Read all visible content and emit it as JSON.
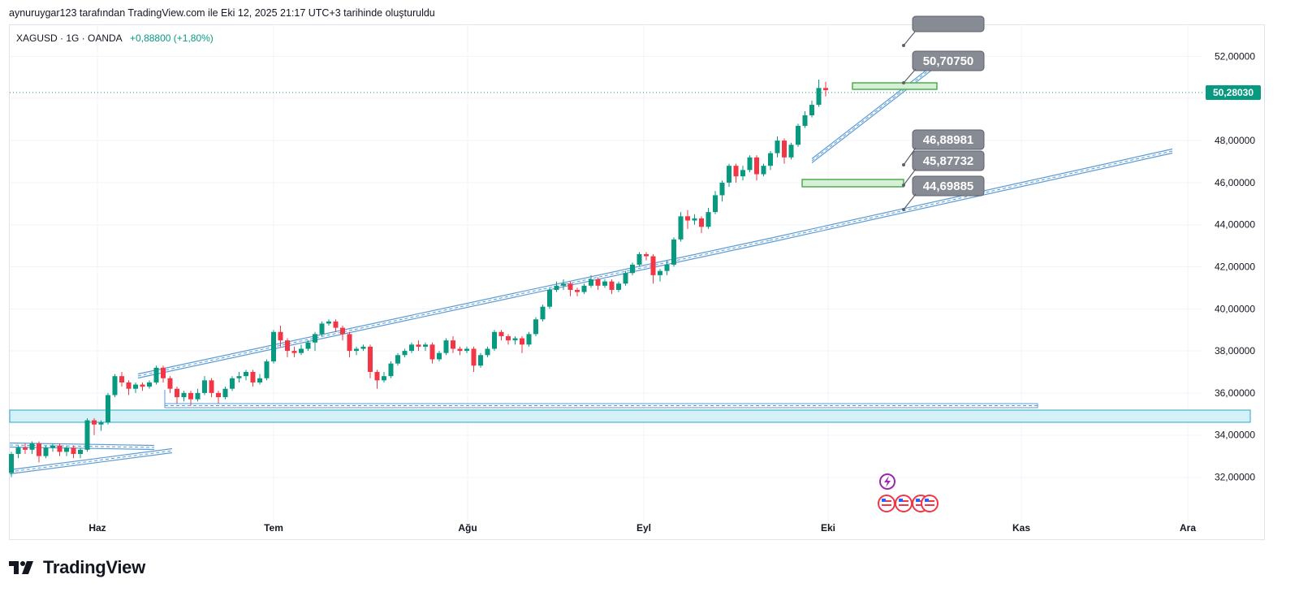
{
  "header": {
    "caption": "aynuruygar123 tarafından TradingView.com ile Eki 12, 2025 21:17 UTC+3 tarihinde oluşturuldu"
  },
  "symbol": {
    "name": "XAGUSD · 1G · OANDA",
    "change": "+0,88800 (+1,80%)"
  },
  "footer": {
    "brand": "TradingView"
  },
  "colors": {
    "up": "#089981",
    "down": "#f23645",
    "drawing": "#5b9bd5",
    "zone_fill": "#d4f1f7",
    "zone_stroke": "#26a8c7",
    "green_box": "#4caf50",
    "callout": "#878b94",
    "price_label": "#089981"
  },
  "chart_data": {
    "type": "candlestick",
    "symbol": "XAGUSD",
    "timeframe": "1G",
    "yticks": [
      "52,00000",
      "48,00000",
      "46,00000",
      "44,00000",
      "42,00000",
      "40,00000",
      "38,00000",
      "36,00000",
      "34,00000",
      "32,00000"
    ],
    "ytick_values": [
      52,
      48,
      46,
      44,
      42,
      40,
      38,
      36,
      34,
      32
    ],
    "ylim": [
      30.2,
      53.5
    ],
    "x_months": [
      "Haz",
      "Tem",
      "Ağu",
      "Eyl",
      "Eki",
      "Kas",
      "Ara"
    ],
    "current_price": "50,28030",
    "current_price_value": 50.2803,
    "callouts": [
      {
        "label": "50,70750",
        "value": 50.7075
      },
      {
        "label": "46,88981",
        "value": 46.88981
      },
      {
        "label": "45,87732",
        "value": 45.87732
      },
      {
        "label": "44,69885",
        "value": 44.69885
      }
    ],
    "candles": [
      [
        32.2,
        33.1,
        32.0,
        33.2
      ],
      [
        33.1,
        33.4,
        32.9,
        33.5
      ],
      [
        33.4,
        33.3,
        33.1,
        33.6
      ],
      [
        33.3,
        33.6,
        33.1,
        33.7
      ],
      [
        33.6,
        33.0,
        32.7,
        33.7
      ],
      [
        33.0,
        33.4,
        32.9,
        33.5
      ],
      [
        33.4,
        33.5,
        33.2,
        33.6
      ],
      [
        33.5,
        33.2,
        33.0,
        33.6
      ],
      [
        33.2,
        33.4,
        33.0,
        33.5
      ],
      [
        33.4,
        33.1,
        32.9,
        33.5
      ],
      [
        33.1,
        33.3,
        32.9,
        33.4
      ],
      [
        33.3,
        34.7,
        33.2,
        34.8
      ],
      [
        34.7,
        34.5,
        34.0,
        34.8
      ],
      [
        34.5,
        34.6,
        34.2,
        34.7
      ],
      [
        34.6,
        35.9,
        34.5,
        36.0
      ],
      [
        35.9,
        36.8,
        35.8,
        36.9
      ],
      [
        36.8,
        36.5,
        36.3,
        37.0
      ],
      [
        36.5,
        36.2,
        35.9,
        36.6
      ],
      [
        36.2,
        36.4,
        36.0,
        36.5
      ],
      [
        36.4,
        36.3,
        36.1,
        36.5
      ],
      [
        36.3,
        36.5,
        36.2,
        36.6
      ],
      [
        36.5,
        37.2,
        36.4,
        37.3
      ],
      [
        37.2,
        36.7,
        36.5,
        37.3
      ],
      [
        36.7,
        36.2,
        36.0,
        36.8
      ],
      [
        36.2,
        35.8,
        35.5,
        36.3
      ],
      [
        35.8,
        36.0,
        35.6,
        36.1
      ],
      [
        36.0,
        35.7,
        35.4,
        36.1
      ],
      [
        35.7,
        36.0,
        35.6,
        36.2
      ],
      [
        36.0,
        36.6,
        35.9,
        36.8
      ],
      [
        36.6,
        36.0,
        35.8,
        36.7
      ],
      [
        36.0,
        35.8,
        35.5,
        36.1
      ],
      [
        35.8,
        36.2,
        35.7,
        36.3
      ],
      [
        36.2,
        36.7,
        36.1,
        36.8
      ],
      [
        36.7,
        36.8,
        36.5,
        37.0
      ],
      [
        36.8,
        37.0,
        36.6,
        37.1
      ],
      [
        37.0,
        36.5,
        36.3,
        37.1
      ],
      [
        36.5,
        36.7,
        36.4,
        36.9
      ],
      [
        36.7,
        37.5,
        36.6,
        37.6
      ],
      [
        37.5,
        38.9,
        37.4,
        39.0
      ],
      [
        38.9,
        38.5,
        38.2,
        39.2
      ],
      [
        38.5,
        38.0,
        37.7,
        38.6
      ],
      [
        38.0,
        37.9,
        37.7,
        38.2
      ],
      [
        37.9,
        38.1,
        37.8,
        38.3
      ],
      [
        38.1,
        38.4,
        38.0,
        38.5
      ],
      [
        38.4,
        38.8,
        38.0,
        38.9
      ],
      [
        38.8,
        39.3,
        38.7,
        39.4
      ],
      [
        39.3,
        39.4,
        39.2,
        39.5
      ],
      [
        39.4,
        39.1,
        38.9,
        39.5
      ],
      [
        39.1,
        38.8,
        38.5,
        39.2
      ],
      [
        38.8,
        38.0,
        37.7,
        38.9
      ],
      [
        38.0,
        38.1,
        37.8,
        38.2
      ],
      [
        38.1,
        38.2,
        38.0,
        38.3
      ],
      [
        38.2,
        37.0,
        36.7,
        38.3
      ],
      [
        37.0,
        36.6,
        36.2,
        37.1
      ],
      [
        36.6,
        36.8,
        36.5,
        37.0
      ],
      [
        36.8,
        37.4,
        36.7,
        37.5
      ],
      [
        37.4,
        37.8,
        37.3,
        37.9
      ],
      [
        37.8,
        38.0,
        37.7,
        38.1
      ],
      [
        38.0,
        38.3,
        37.9,
        38.4
      ],
      [
        38.3,
        38.2,
        38.0,
        38.5
      ],
      [
        38.2,
        38.3,
        38.0,
        38.4
      ],
      [
        38.3,
        37.6,
        37.4,
        38.4
      ],
      [
        37.6,
        37.9,
        37.5,
        38.0
      ],
      [
        37.9,
        38.5,
        37.8,
        38.6
      ],
      [
        38.5,
        38.1,
        37.9,
        38.7
      ],
      [
        38.1,
        38.0,
        37.8,
        38.2
      ],
      [
        38.0,
        38.1,
        37.9,
        38.2
      ],
      [
        38.1,
        37.3,
        37.0,
        38.2
      ],
      [
        37.3,
        37.8,
        37.2,
        37.9
      ],
      [
        37.8,
        38.1,
        37.7,
        38.2
      ],
      [
        38.1,
        38.9,
        38.0,
        39.0
      ],
      [
        38.9,
        38.7,
        38.5,
        39.0
      ],
      [
        38.7,
        38.5,
        38.3,
        38.8
      ],
      [
        38.5,
        38.6,
        38.3,
        38.7
      ],
      [
        38.6,
        38.3,
        37.9,
        38.7
      ],
      [
        38.3,
        38.8,
        38.2,
        38.9
      ],
      [
        38.8,
        39.5,
        38.7,
        39.6
      ],
      [
        39.5,
        40.1,
        39.4,
        40.2
      ],
      [
        40.1,
        40.9,
        40.0,
        41.0
      ],
      [
        40.9,
        41.1,
        40.8,
        41.3
      ],
      [
        41.1,
        41.2,
        40.9,
        41.4
      ],
      [
        41.2,
        40.9,
        40.6,
        41.3
      ],
      [
        40.9,
        40.8,
        40.6,
        41.0
      ],
      [
        40.8,
        41.1,
        40.7,
        41.2
      ],
      [
        41.1,
        41.4,
        41.0,
        41.6
      ],
      [
        41.4,
        41.1,
        40.9,
        41.5
      ],
      [
        41.1,
        41.3,
        41.0,
        41.4
      ],
      [
        41.3,
        40.9,
        40.7,
        41.4
      ],
      [
        40.9,
        41.2,
        40.8,
        41.3
      ],
      [
        41.2,
        41.7,
        41.1,
        41.8
      ],
      [
        41.7,
        42.1,
        41.6,
        42.2
      ],
      [
        42.1,
        42.6,
        42.0,
        42.7
      ],
      [
        42.6,
        42.5,
        42.3,
        42.7
      ],
      [
        42.5,
        41.6,
        41.2,
        42.6
      ],
      [
        41.6,
        41.8,
        41.3,
        41.9
      ],
      [
        41.8,
        42.1,
        41.6,
        42.3
      ],
      [
        42.1,
        43.3,
        42.0,
        43.4
      ],
      [
        43.3,
        44.4,
        43.2,
        44.6
      ],
      [
        44.4,
        44.2,
        43.8,
        44.7
      ],
      [
        44.2,
        44.3,
        44.0,
        44.5
      ],
      [
        44.3,
        43.9,
        43.6,
        44.4
      ],
      [
        43.9,
        44.6,
        43.8,
        44.8
      ],
      [
        44.6,
        45.4,
        44.5,
        45.6
      ],
      [
        45.4,
        46.0,
        45.1,
        46.1
      ],
      [
        46.0,
        46.8,
        45.8,
        46.9
      ],
      [
        46.8,
        46.3,
        46.0,
        46.9
      ],
      [
        46.3,
        46.6,
        46.1,
        46.8
      ],
      [
        46.6,
        47.2,
        46.5,
        47.3
      ],
      [
        47.2,
        46.4,
        46.1,
        47.3
      ],
      [
        46.4,
        46.8,
        46.3,
        46.9
      ],
      [
        46.8,
        47.4,
        46.6,
        47.5
      ],
      [
        47.4,
        48.0,
        47.2,
        48.2
      ],
      [
        48.0,
        47.2,
        46.9,
        48.1
      ],
      [
        47.2,
        47.8,
        47.1,
        47.9
      ],
      [
        47.8,
        48.7,
        47.7,
        48.8
      ],
      [
        48.7,
        49.2,
        48.6,
        49.4
      ],
      [
        49.2,
        49.7,
        49.1,
        49.9
      ],
      [
        49.7,
        50.5,
        49.6,
        50.9
      ],
      [
        50.5,
        50.4,
        50.1,
        50.8
      ]
    ]
  }
}
